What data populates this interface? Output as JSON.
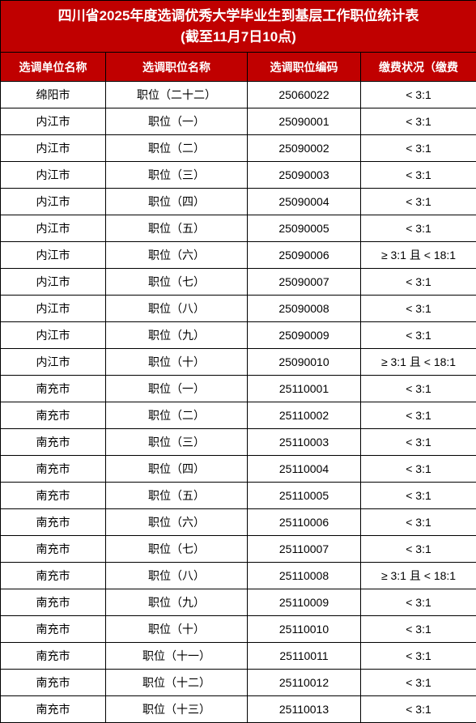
{
  "title_line1": "四川省2025年度选调优秀大学毕业生到基层工作职位统计表",
  "title_line2": "(截至11月7日10点)",
  "columns": [
    "选调单位名称",
    "选调职位名称",
    "选调职位编码",
    "缴费状况（缴费"
  ],
  "colors": {
    "header_bg": "#c00000",
    "header_text": "#ffffff",
    "cell_bg": "#ffffff",
    "cell_text": "#000000",
    "border": "#000000"
  },
  "rows": [
    [
      "绵阳市",
      "职位（二十二）",
      "25060022",
      "< 3:1"
    ],
    [
      "内江市",
      "职位（一）",
      "25090001",
      "< 3:1"
    ],
    [
      "内江市",
      "职位（二）",
      "25090002",
      "< 3:1"
    ],
    [
      "内江市",
      "职位（三）",
      "25090003",
      "< 3:1"
    ],
    [
      "内江市",
      "职位（四）",
      "25090004",
      "< 3:1"
    ],
    [
      "内江市",
      "职位（五）",
      "25090005",
      "< 3:1"
    ],
    [
      "内江市",
      "职位（六）",
      "25090006",
      "≥ 3:1 且 < 18:1"
    ],
    [
      "内江市",
      "职位（七）",
      "25090007",
      "< 3:1"
    ],
    [
      "内江市",
      "职位（八）",
      "25090008",
      "< 3:1"
    ],
    [
      "内江市",
      "职位（九）",
      "25090009",
      "< 3:1"
    ],
    [
      "内江市",
      "职位（十）",
      "25090010",
      "≥ 3:1 且 < 18:1"
    ],
    [
      "南充市",
      "职位（一）",
      "25110001",
      "< 3:1"
    ],
    [
      "南充市",
      "职位（二）",
      "25110002",
      "< 3:1"
    ],
    [
      "南充市",
      "职位（三）",
      "25110003",
      "< 3:1"
    ],
    [
      "南充市",
      "职位（四）",
      "25110004",
      "< 3:1"
    ],
    [
      "南充市",
      "职位（五）",
      "25110005",
      "< 3:1"
    ],
    [
      "南充市",
      "职位（六）",
      "25110006",
      "< 3:1"
    ],
    [
      "南充市",
      "职位（七）",
      "25110007",
      "< 3:1"
    ],
    [
      "南充市",
      "职位（八）",
      "25110008",
      "≥ 3:1 且 < 18:1"
    ],
    [
      "南充市",
      "职位（九）",
      "25110009",
      "< 3:1"
    ],
    [
      "南充市",
      "职位（十）",
      "25110010",
      "< 3:1"
    ],
    [
      "南充市",
      "职位（十一）",
      "25110011",
      "< 3:1"
    ],
    [
      "南充市",
      "职位（十二）",
      "25110012",
      "< 3:1"
    ],
    [
      "南充市",
      "职位（十三）",
      "25110013",
      "< 3:1"
    ]
  ]
}
